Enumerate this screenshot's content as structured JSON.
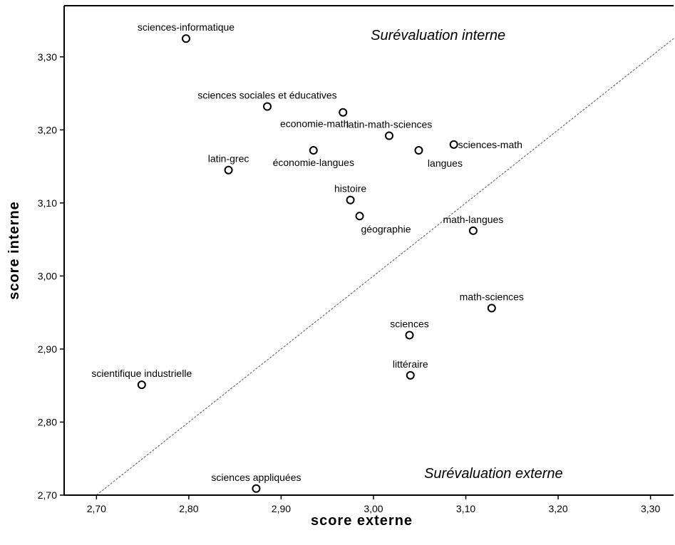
{
  "chart_data": {
    "type": "scatter",
    "title": "",
    "xlabel": "score externe",
    "ylabel": "score interne",
    "xlim": [
      2.665,
      3.325
    ],
    "ylim": [
      2.7,
      3.37
    ],
    "xticks": [
      2.7,
      2.8,
      2.9,
      3.0,
      3.1,
      3.2,
      3.3
    ],
    "yticks": [
      2.7,
      2.8,
      2.9,
      3.0,
      3.1,
      3.2,
      3.3
    ],
    "xtick_labels": [
      "2,70",
      "2,80",
      "2,90",
      "3,00",
      "3,10",
      "3,20",
      "3,30"
    ],
    "ytick_labels": [
      "2,70",
      "2,80",
      "2,90",
      "3,00",
      "3,10",
      "3,20",
      "3,30"
    ],
    "grid": false,
    "legend": "none",
    "reference_line": {
      "type": "y=x",
      "style": "dashed"
    },
    "annotations": [
      {
        "text": "Surévaluation interne",
        "x": 3.07,
        "y": 3.33
      },
      {
        "text": "Surévaluation externe",
        "x": 3.13,
        "y": 2.73
      }
    ],
    "points": [
      {
        "label": "sciences-informatique",
        "x": 2.797,
        "y": 3.325,
        "label_pos": "above"
      },
      {
        "label": "sciences sociales et éducatives",
        "x": 2.885,
        "y": 3.232,
        "label_pos": "above"
      },
      {
        "label": "economie-math",
        "x": 2.967,
        "y": 3.224,
        "label_pos": "below-left"
      },
      {
        "label": "latin-math-sciences",
        "x": 3.017,
        "y": 3.192,
        "label_pos": "above"
      },
      {
        "label": "sciences-math",
        "x": 3.087,
        "y": 3.18,
        "label_pos": "right"
      },
      {
        "label": "économie-langues",
        "x": 2.935,
        "y": 3.172,
        "label_pos": "below"
      },
      {
        "label": "langues",
        "x": 3.049,
        "y": 3.172,
        "label_pos": "below-right"
      },
      {
        "label": "latin-grec",
        "x": 2.843,
        "y": 3.145,
        "label_pos": "above"
      },
      {
        "label": "histoire",
        "x": 2.975,
        "y": 3.104,
        "label_pos": "above"
      },
      {
        "label": "géographie",
        "x": 2.985,
        "y": 3.082,
        "label_pos": "below-right"
      },
      {
        "label": "math-langues",
        "x": 3.108,
        "y": 3.062,
        "label_pos": "above"
      },
      {
        "label": "math-sciences",
        "x": 3.128,
        "y": 2.956,
        "label_pos": "above"
      },
      {
        "label": "sciences",
        "x": 3.039,
        "y": 2.919,
        "label_pos": "above"
      },
      {
        "label": "littéraire",
        "x": 3.04,
        "y": 2.864,
        "label_pos": "above"
      },
      {
        "label": "scientifique industrielle",
        "x": 2.749,
        "y": 2.851,
        "label_pos": "above"
      },
      {
        "label": "sciences appliquées",
        "x": 2.873,
        "y": 2.709,
        "label_pos": "above"
      }
    ]
  },
  "colors": {
    "axis": "#000000",
    "marker": "#000000",
    "reference_line": "#555555",
    "background": "#ffffff"
  }
}
